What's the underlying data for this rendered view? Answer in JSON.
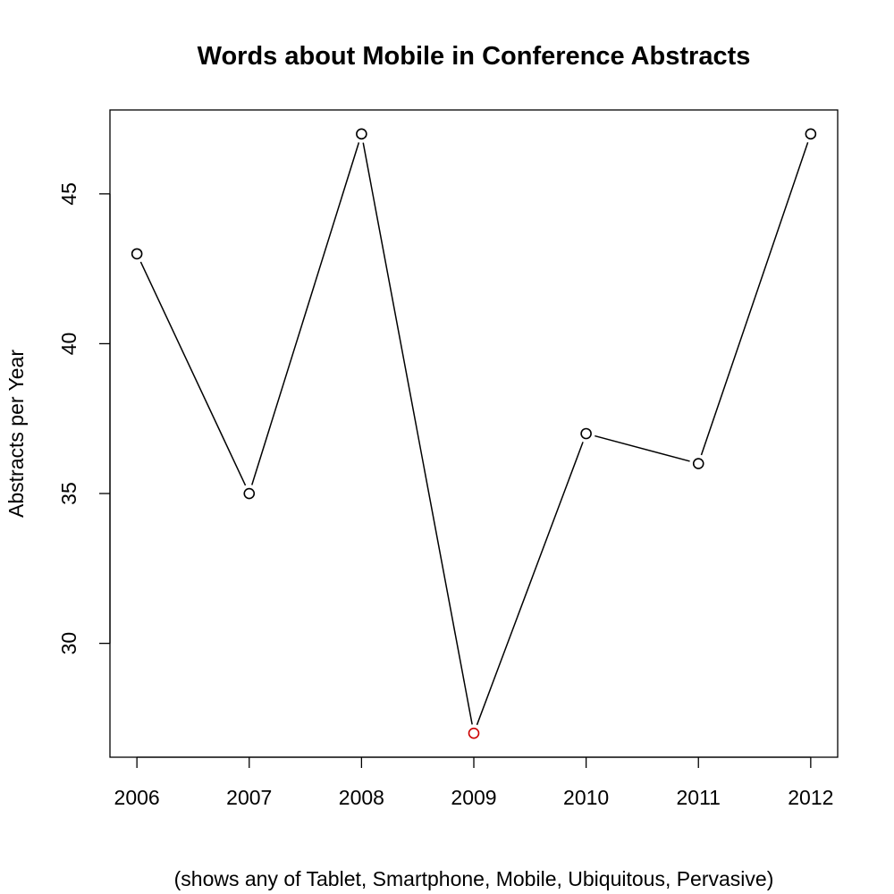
{
  "chart_data": {
    "type": "line",
    "title": "Words about Mobile in Conference Abstracts",
    "xlabel": "(shows any of Tablet, Smartphone, Mobile, Ubiquitous, Pervasive)",
    "ylabel": "Abstracts per Year",
    "x": [
      2006,
      2007,
      2008,
      2009,
      2010,
      2011,
      2012
    ],
    "series": [
      {
        "values": [
          43,
          35,
          47,
          27,
          37,
          36,
          47
        ]
      }
    ],
    "highlight": {
      "x": 2009,
      "color": "#cc0000"
    },
    "point_color": "#000000",
    "line_color": "#000000",
    "xticks": [
      "2006",
      "2007",
      "2008",
      "2009",
      "2010",
      "2011",
      "2012"
    ],
    "yticks": [
      30,
      35,
      40,
      45
    ],
    "xlim": [
      2005.76,
      2012.24
    ],
    "ylim": [
      26.2,
      47.8
    ],
    "grid": false
  }
}
